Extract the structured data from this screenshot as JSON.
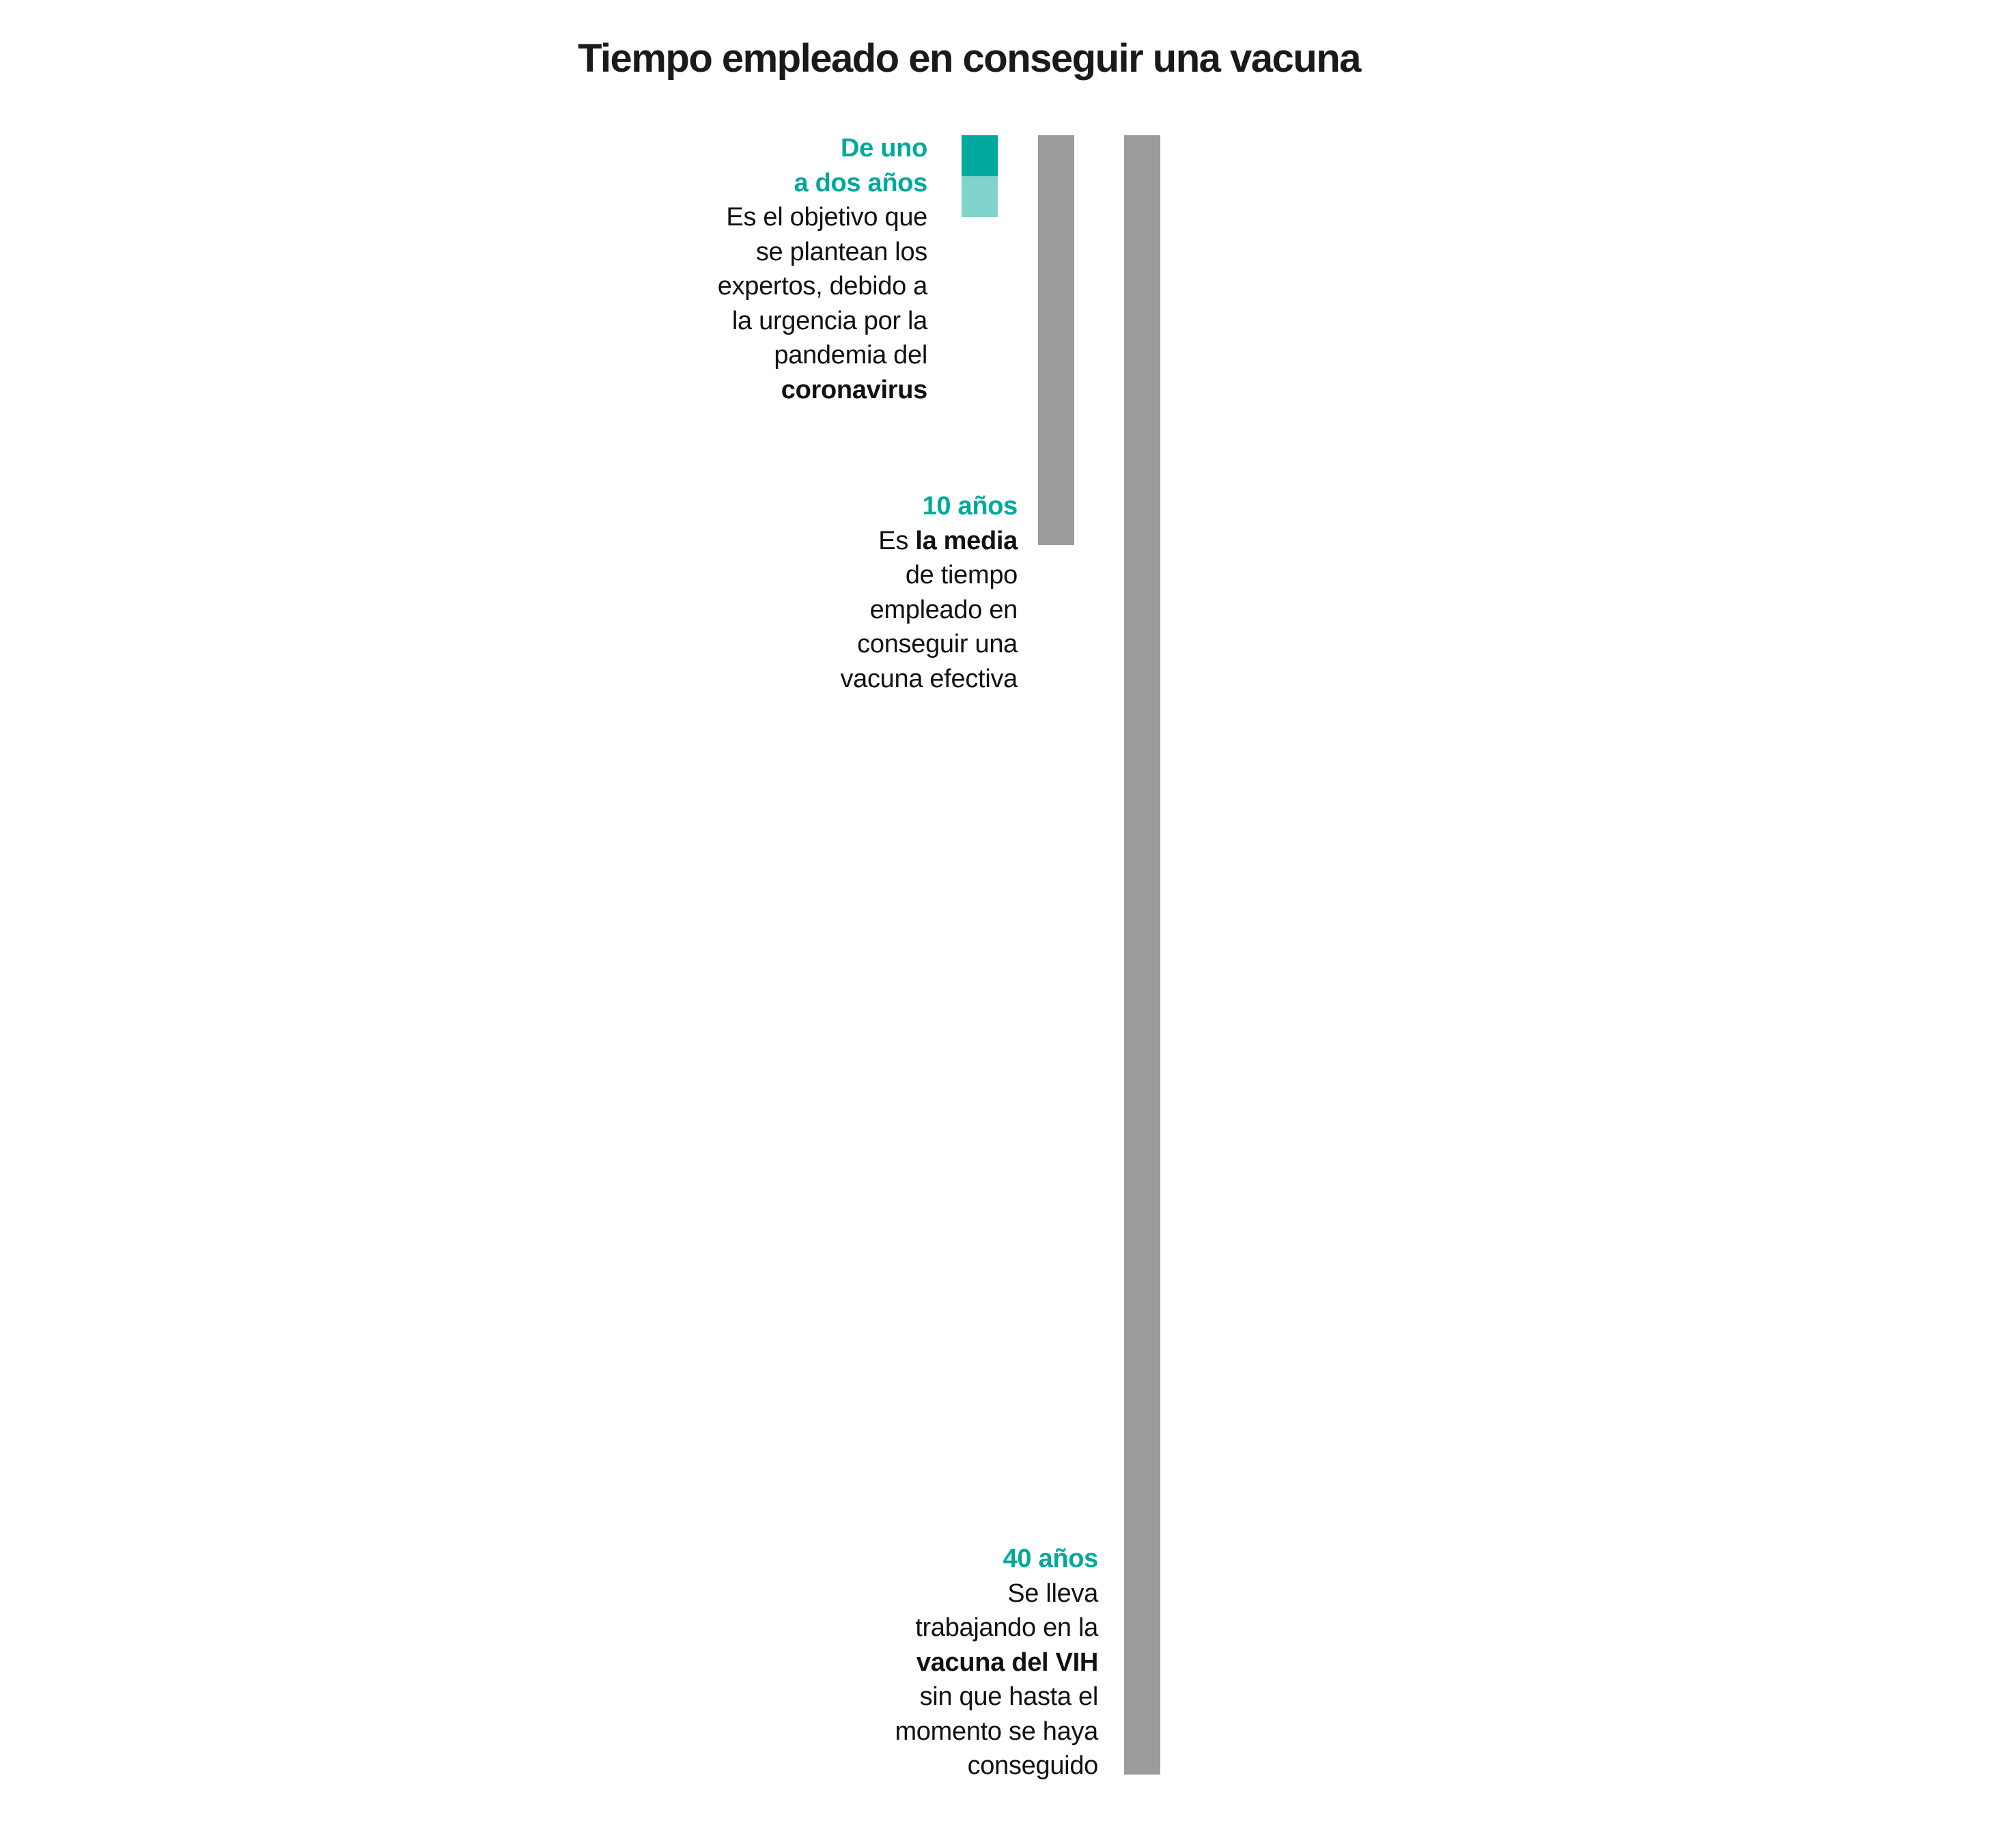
{
  "chart_data": {
    "type": "bar",
    "orientation": "vertical-downward",
    "title": "Tiempo empleado en conseguir una vacuna",
    "unit": "años",
    "categories": [
      "De uno a dos años",
      "10 años",
      "40 años"
    ],
    "series": [
      {
        "values": [
          {
            "min": 1,
            "max": 2
          },
          10,
          40
        ]
      }
    ],
    "colors": {
      "range_min": "#00a99d",
      "range_max": "#80d4cc",
      "bar": "#9b9b9b",
      "label": "#00a99d"
    },
    "annotations": [
      {
        "lines": [
          [
            {
              "t": "De uno",
              "s": "head"
            }
          ],
          [
            {
              "t": "a dos años",
              "s": "head"
            }
          ],
          [
            {
              "t": "Es el objetivo que"
            }
          ],
          [
            {
              "t": "se plantean los"
            }
          ],
          [
            {
              "t": "expertos, debido a"
            }
          ],
          [
            {
              "t": "la urgencia por la"
            }
          ],
          [
            {
              "t": "pandemia del"
            }
          ],
          [
            {
              "t": "coronavirus",
              "s": "bold"
            }
          ]
        ]
      },
      {
        "lines": [
          [
            {
              "t": "10 años",
              "s": "head"
            }
          ],
          [
            {
              "t": "Es "
            },
            {
              "t": "la media",
              "s": "bold"
            }
          ],
          [
            {
              "t": "de tiempo"
            }
          ],
          [
            {
              "t": "empleado en"
            }
          ],
          [
            {
              "t": "conseguir una"
            }
          ],
          [
            {
              "t": "vacuna efectiva"
            }
          ]
        ]
      },
      {
        "lines": [
          [
            {
              "t": "40 años",
              "s": "head"
            }
          ],
          [
            {
              "t": "Se lleva"
            }
          ],
          [
            {
              "t": "trabajando en la"
            }
          ],
          [
            {
              "t": "vacuna del VIH",
              "s": "bold"
            }
          ],
          [
            {
              "t": "sin que hasta el"
            }
          ],
          [
            {
              "t": "momento se haya"
            }
          ],
          [
            {
              "t": "conseguido"
            }
          ]
        ]
      }
    ]
  }
}
